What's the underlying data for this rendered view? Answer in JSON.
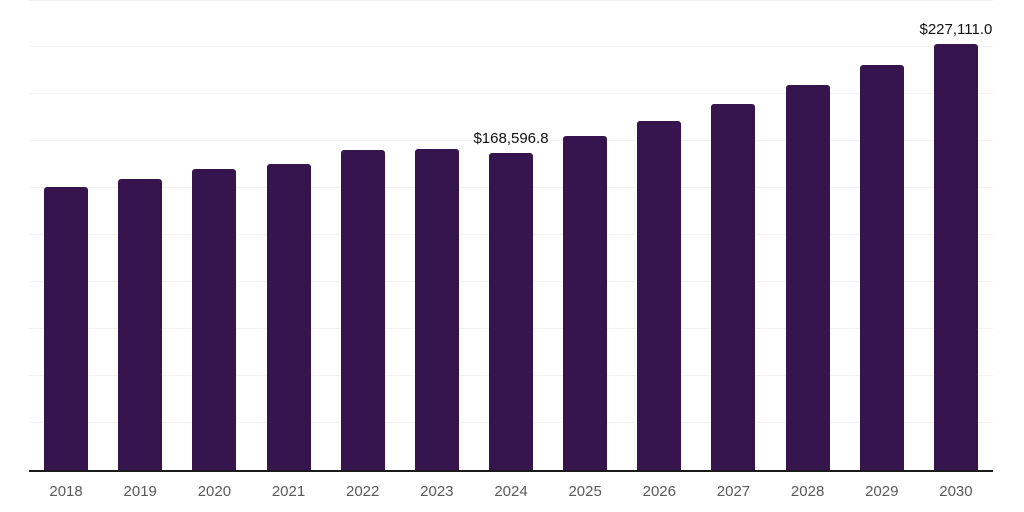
{
  "chart_data": {
    "type": "bar",
    "title": "",
    "xlabel": "",
    "ylabel": "",
    "ylim": [
      0,
      250000
    ],
    "gridline_step": 25000,
    "grid": "horizontal",
    "legend": "none",
    "categories": [
      "2018",
      "2019",
      "2020",
      "2021",
      "2022",
      "2023",
      "2024",
      "2025",
      "2026",
      "2027",
      "2028",
      "2029",
      "2030"
    ],
    "values": [
      150600,
      154900,
      160200,
      162700,
      170500,
      171000,
      168596.8,
      177800,
      185700,
      194800,
      205000,
      215900,
      227111.0
    ],
    "value_labels": [
      {
        "category": "2024",
        "text": "$168,596.8"
      },
      {
        "category": "2030",
        "text": "$227,111.0"
      }
    ],
    "colors": {
      "bar": "#36154e",
      "gridline": "#f3f3f3",
      "axis": "#1a1a1a",
      "tick_label": "#595959",
      "value_label": "#111111",
      "background": "#ffffff"
    }
  }
}
